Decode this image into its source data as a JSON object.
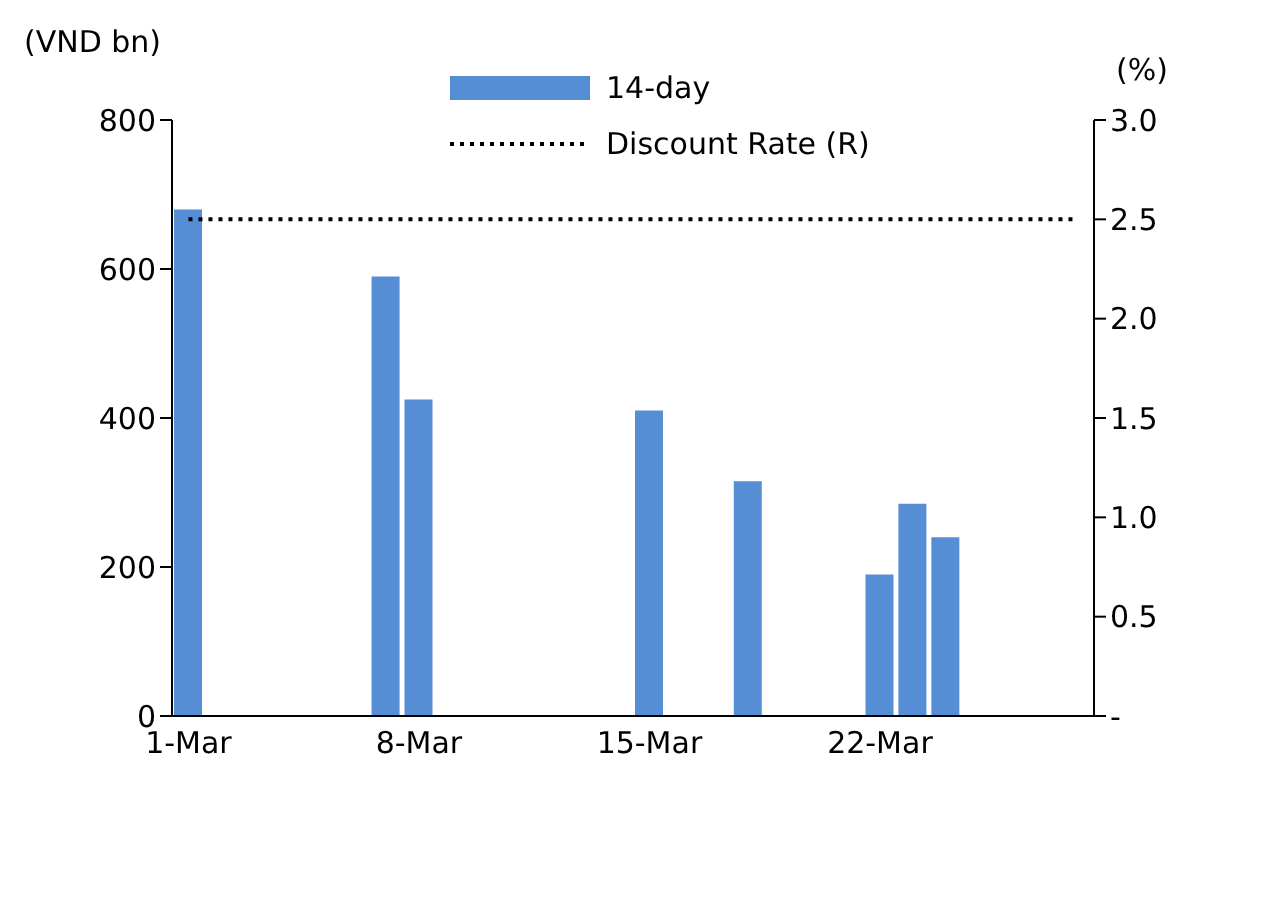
{
  "chart_data": {
    "type": "bar",
    "ylabel": "(VND bn)",
    "y2label": "(%)",
    "categories": [
      "1-Mar",
      null,
      null,
      null,
      null,
      null,
      null,
      "8-Mar",
      null,
      null,
      null,
      null,
      null,
      null,
      "15-Mar",
      null,
      null,
      null,
      null,
      null,
      null,
      "22-Mar",
      null,
      null,
      null,
      null,
      null,
      null
    ],
    "series": [
      {
        "name": "14-day",
        "color": "#558ed5",
        "values": [
          680,
          null,
          null,
          null,
          null,
          null,
          590,
          425,
          null,
          null,
          null,
          null,
          null,
          null,
          410,
          null,
          null,
          315,
          null,
          null,
          null,
          190,
          285,
          240,
          null,
          null,
          null,
          null
        ]
      },
      {
        "name": "Discount Rate (R)",
        "type": "line",
        "axis": "y2",
        "color": "#000000",
        "line_style": "dotted",
        "values": [
          2.5,
          2.5,
          2.5,
          2.5,
          2.5,
          2.5,
          2.5,
          2.5,
          2.5,
          2.5,
          2.5,
          2.5,
          2.5,
          2.5,
          2.5,
          2.5,
          2.5,
          2.5,
          2.5,
          2.5,
          2.5,
          2.5,
          2.5,
          2.5,
          2.5,
          2.5,
          2.5,
          2.5
        ]
      }
    ],
    "ylim": [
      0,
      800
    ],
    "yticks": [
      0,
      200,
      400,
      600,
      800
    ],
    "y2lim": [
      0,
      3
    ],
    "y2ticks": [
      {
        "value": 0,
        "label": "-"
      },
      0.5,
      {
        "value": 1,
        "label": "1.0"
      },
      1.5,
      {
        "value": 2,
        "label": "2.0"
      },
      2.5,
      {
        "value": 3,
        "label": "3.0"
      }
    ],
    "grid": false,
    "legend": "top"
  }
}
